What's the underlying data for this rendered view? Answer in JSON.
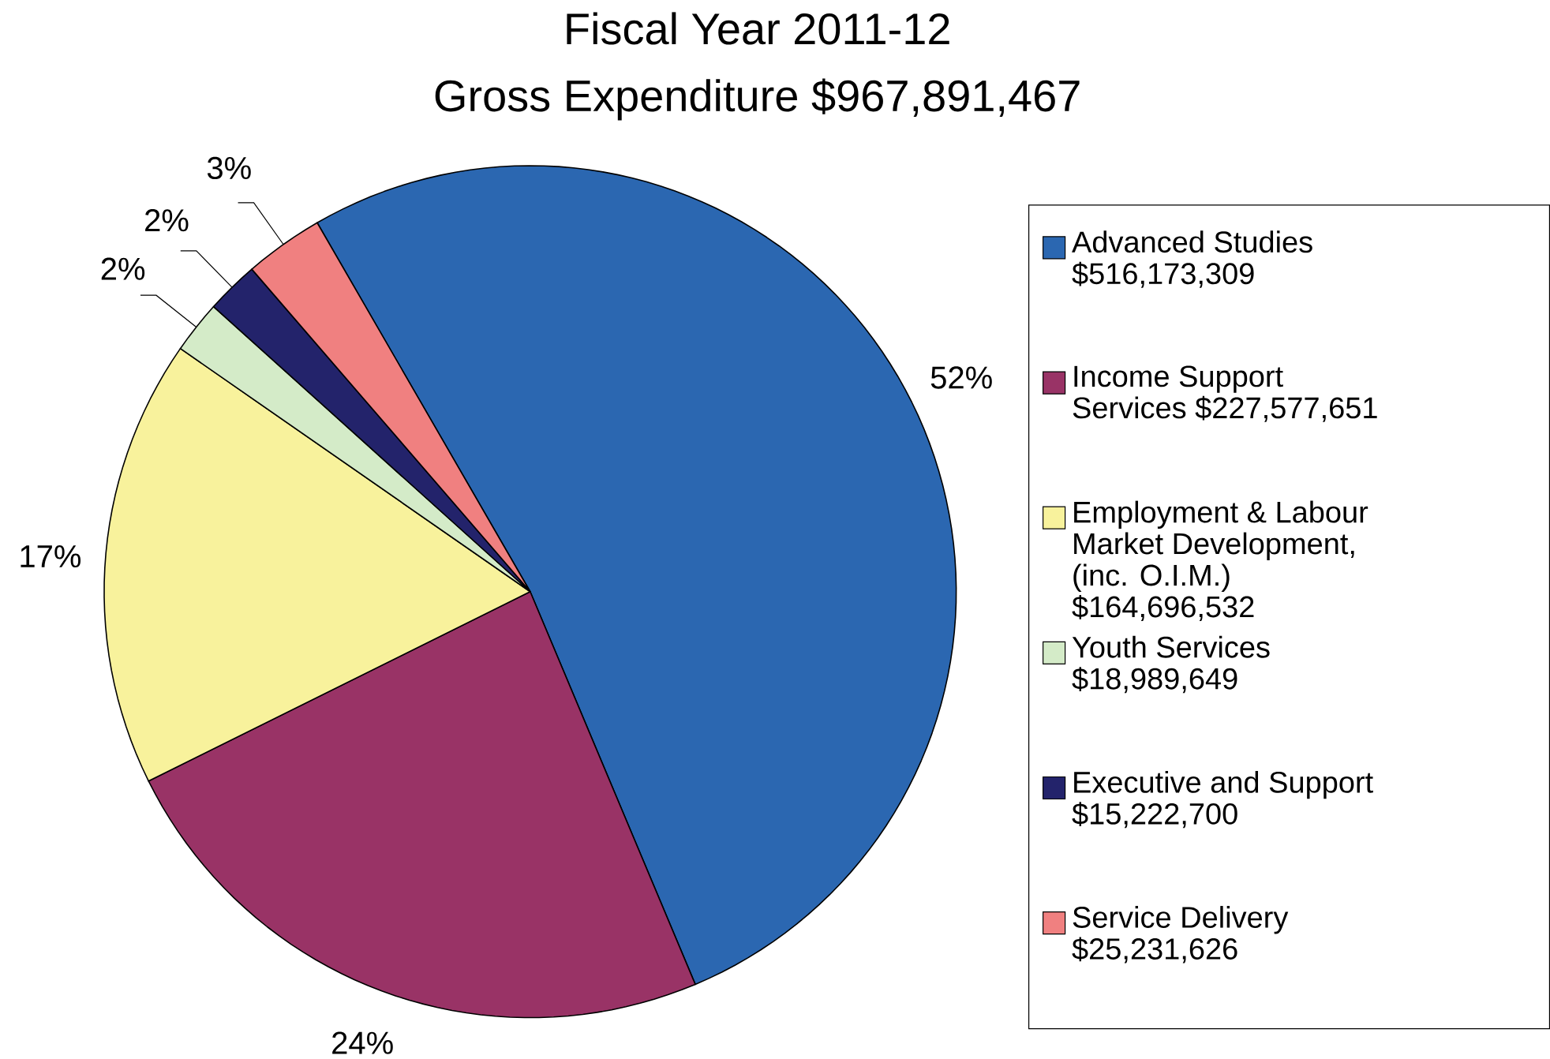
{
  "chart_data": {
    "type": "pie",
    "title": "Fiscal Year 2011-12",
    "subtitle": "Gross Expenditure $967,891,467",
    "categories": [
      "Advanced Studies $516,173,309",
      "Income Support Services $227,577,651",
      "Employment & Labour Market Development, (inc. O.I.M.) $164,696,532",
      "Youth Services $18,989,649",
      "Executive and Support $15,222,700",
      "Service Delivery $25,231,626"
    ],
    "values": [
      52,
      24,
      17,
      2,
      2,
      3
    ],
    "value_labels": [
      "52%",
      "24%",
      "17%",
      "2%",
      "2%",
      "3%"
    ],
    "colors": [
      "#2b67b1",
      "#993366",
      "#f8f29c",
      "#d4ebc8",
      "#23236b",
      "#f08080"
    ],
    "legend": "right"
  }
}
